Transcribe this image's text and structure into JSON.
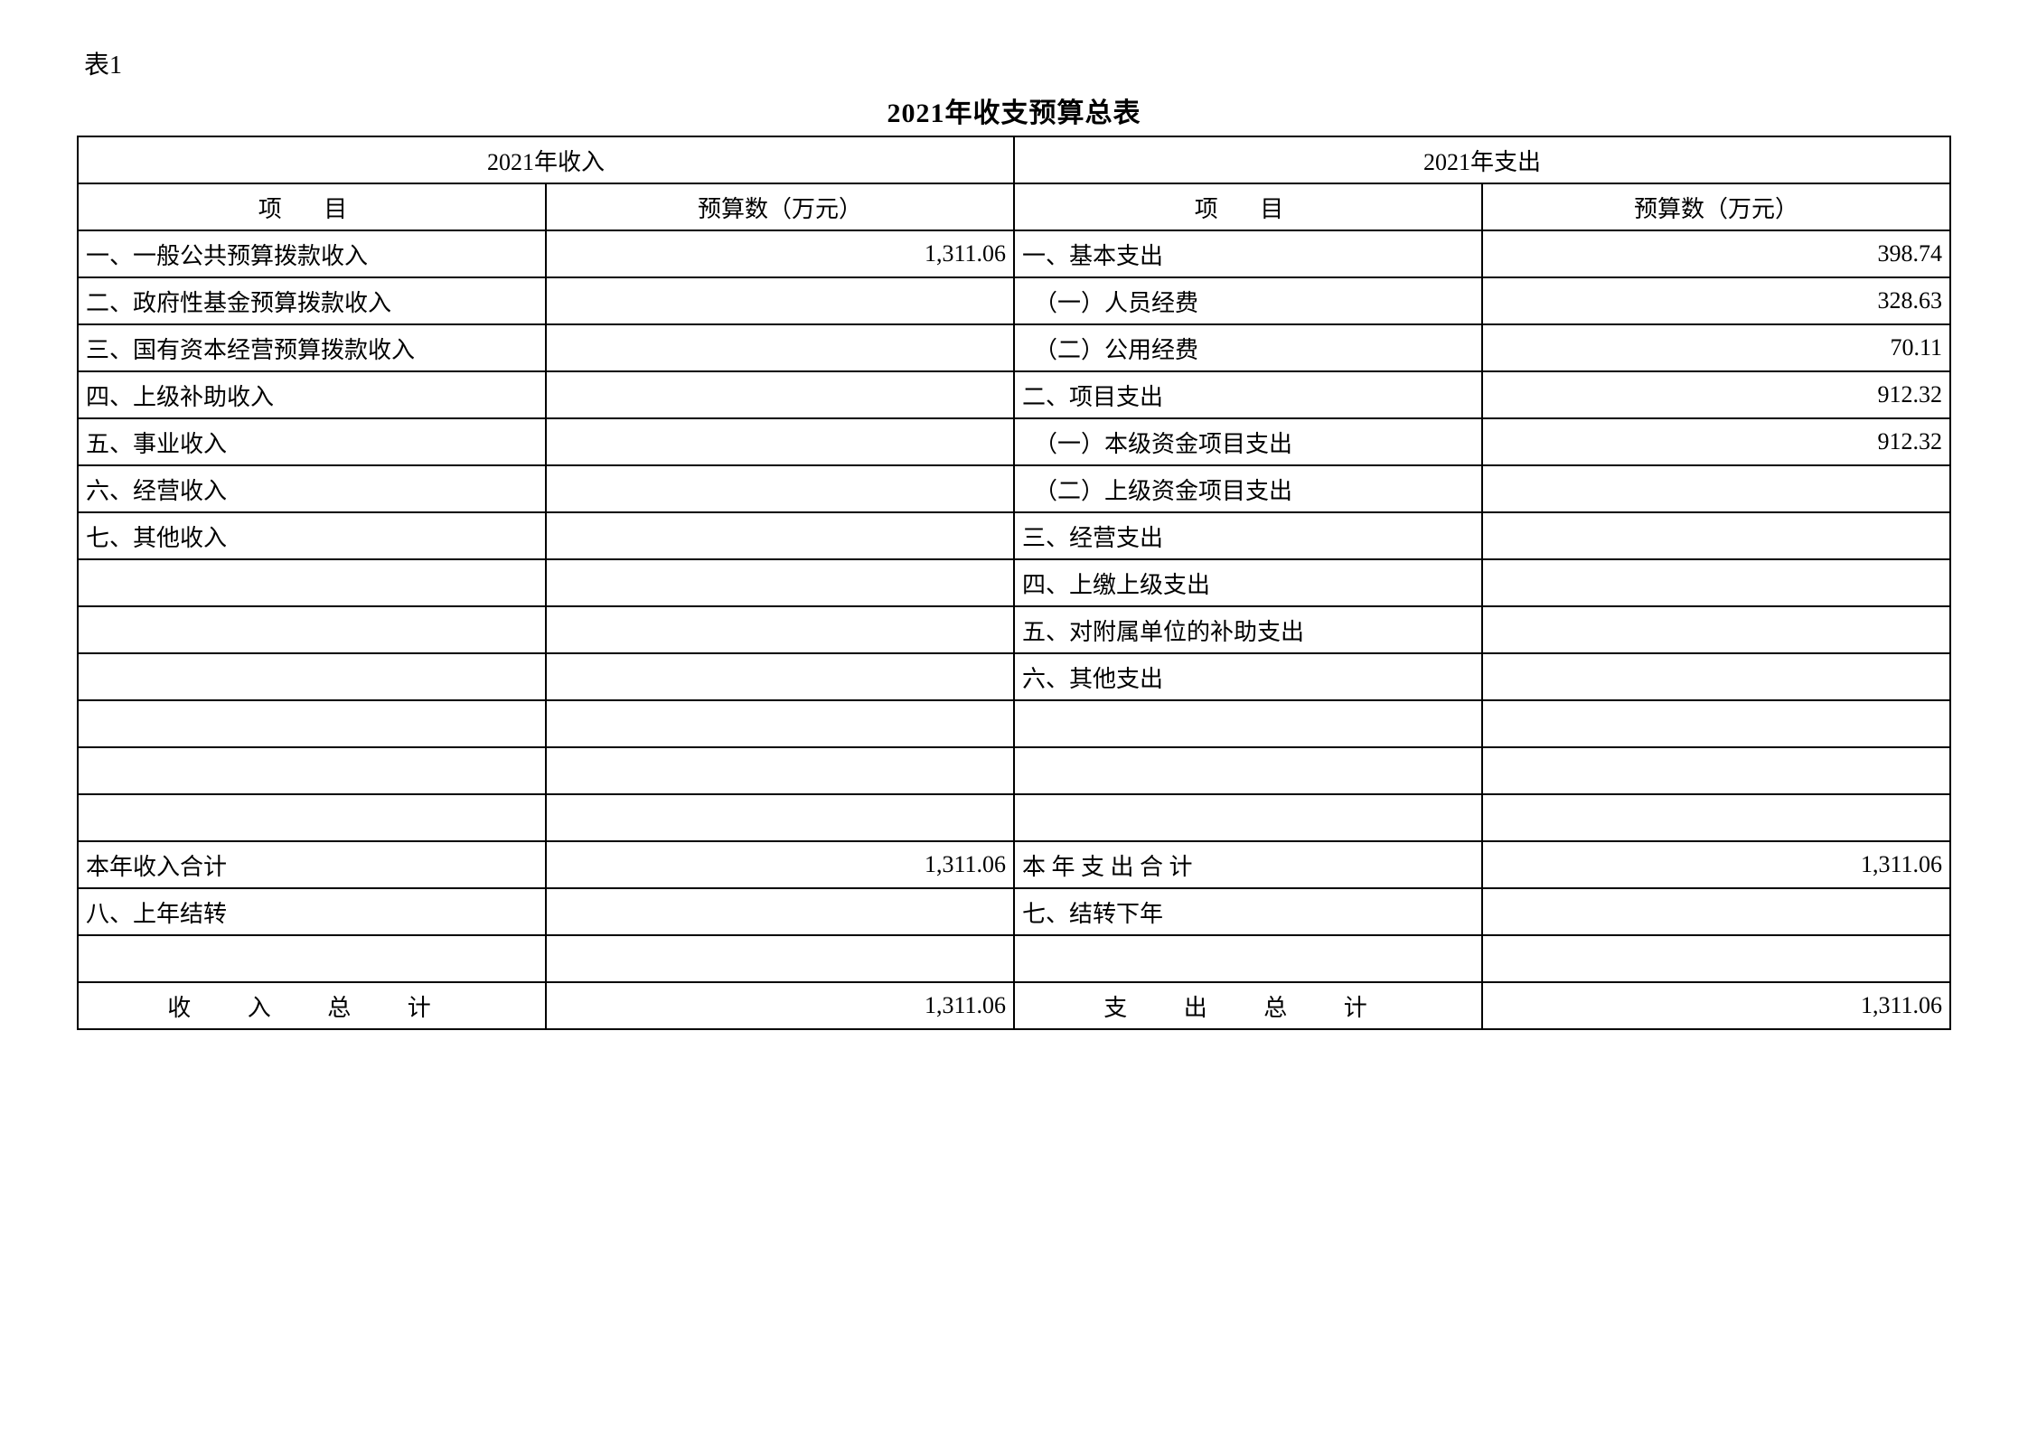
{
  "table_label": "表1",
  "title": "2021年收支预算总表",
  "header": {
    "income_label": "2021年收入",
    "expense_label": "2021年支出",
    "item": "项   目",
    "budget": "预算数（万元）"
  },
  "income_items": [
    {
      "label": "一、一般公共预算拨款收入",
      "value": "1,311.06"
    },
    {
      "label": "二、政府性基金预算拨款收入",
      "value": ""
    },
    {
      "label": "三、国有资本经营预算拨款收入",
      "value": ""
    },
    {
      "label": "四、上级补助收入",
      "value": ""
    },
    {
      "label": "五、事业收入",
      "value": ""
    },
    {
      "label": "六、经营收入",
      "value": ""
    },
    {
      "label": "七、其他收入",
      "value": ""
    }
  ],
  "expense_items": [
    {
      "label": "一、基本支出",
      "value": "398.74"
    },
    {
      "label": "　（一）人员经费",
      "value": "328.63"
    },
    {
      "label": "　（二）公用经费",
      "value": "70.11"
    },
    {
      "label": "二、项目支出",
      "value": "912.32"
    },
    {
      "label": "　（一）本级资金项目支出",
      "value": "912.32"
    },
    {
      "label": "　（二）上级资金项目支出",
      "value": ""
    },
    {
      "label": "三、经营支出",
      "value": ""
    },
    {
      "label": "四、上缴上级支出",
      "value": ""
    },
    {
      "label": "五、对附属单位的补助支出",
      "value": ""
    },
    {
      "label": "六、其他支出",
      "value": ""
    }
  ],
  "subtotal": {
    "income_label": "本年收入合计",
    "income_value": "1,311.06",
    "expense_label": "本 年 支 出 合 计",
    "expense_value": "1,311.06"
  },
  "carry": {
    "income_label": "八、上年结转",
    "income_value": "",
    "expense_label": "七、结转下年",
    "expense_value": ""
  },
  "total": {
    "income_label": "收  入  总  计",
    "income_value": "1,311.06",
    "expense_label": "支  出  总  计",
    "expense_value": "1,311.06"
  },
  "styling": {
    "border_color": "#000000",
    "background_color": "#ffffff",
    "text_color": "#000000",
    "title_fontsize": 30,
    "cell_fontsize": 26,
    "label_fontsize": 28
  }
}
